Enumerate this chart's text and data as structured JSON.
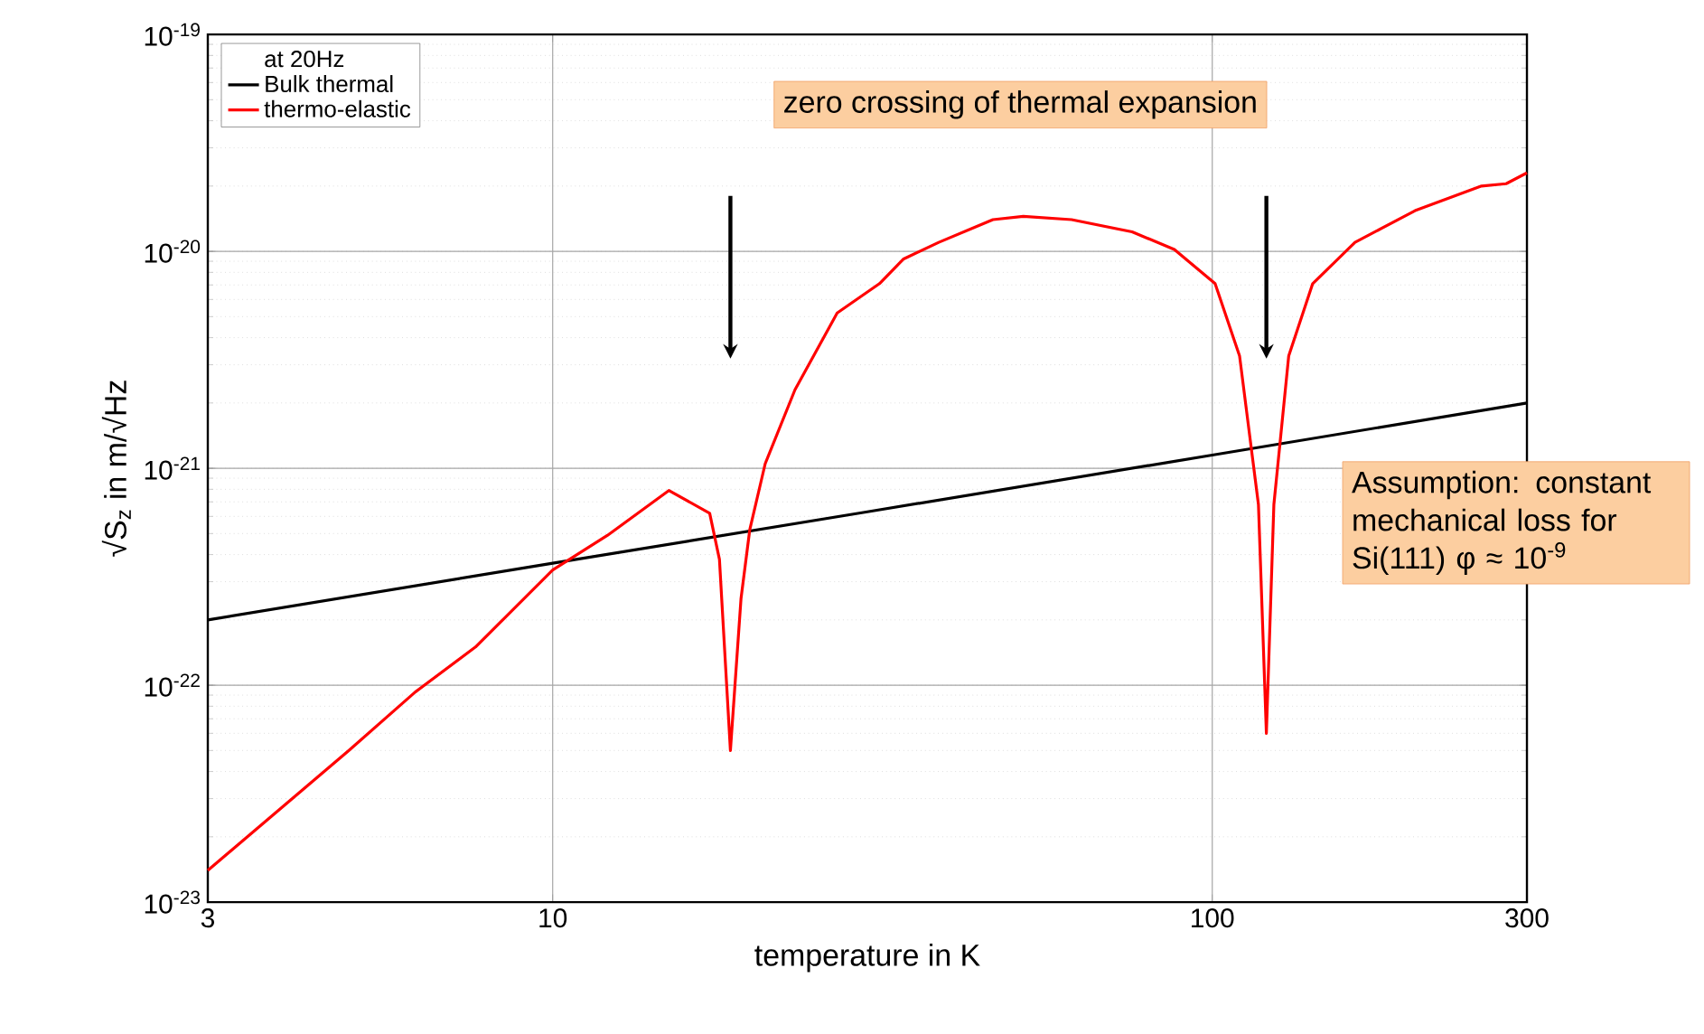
{
  "chart_data": {
    "type": "line",
    "xlabel": "temperature in K",
    "ylabel": "√S$_{z}$ in m/√Hz",
    "legend_title": "at 20Hz",
    "log": "xy",
    "grid": true,
    "legend": "top left",
    "marker": "none",
    "line_style": "solid",
    "xlim": [
      3,
      300
    ],
    "xticks": [
      3,
      10,
      100,
      300
    ],
    "ylim": [
      1e-23,
      1e-19
    ],
    "yticks": [
      {
        "value": 1e-23,
        "label": "10$^{-23}$"
      },
      {
        "value": 1e-22,
        "label": "10$^{-22}$"
      },
      {
        "value": 1e-21,
        "label": "10$^{-21}$"
      },
      {
        "value": 1e-20,
        "label": "10$^{-20}$"
      },
      {
        "value": 1e-19,
        "label": "10$^{-19}$"
      }
    ],
    "annotations": [
      "zero crossing of thermal expansion",
      "Assumption: constant mechanical loss for Si(111) φ ≈ 10$^{-9}$"
    ],
    "series": [
      {
        "name": "Bulk thermal",
        "color": "#000000",
        "x": [
          3,
          10,
          30,
          100,
          300
        ],
        "values": [
          2e-22,
          3.65e-22,
          6.3e-22,
          1.15e-21,
          2e-21
        ]
      },
      {
        "name": "thermo-elastic",
        "color": "#ff0000",
        "x": [
          3,
          4.91,
          6.19,
          7.64,
          10.0,
          12.1,
          15.0,
          17.3,
          17.9,
          18.6,
          19.3,
          19.9,
          21.0,
          23.3,
          27.0,
          31.3,
          34.0,
          38.5,
          46.5,
          51.7,
          61.2,
          75.6,
          87.6,
          101,
          110,
          117.5,
          120.8,
          124,
          130.6,
          142,
          164.6,
          203,
          256,
          279,
          300
        ],
        "values": [
          1.4e-23,
          5e-23,
          9.3e-23,
          1.5e-22,
          3.4e-22,
          4.9e-22,
          7.9e-22,
          6.2e-22,
          3.8e-22,
          5e-23,
          2.5e-22,
          5.2e-22,
          1.05e-21,
          2.3e-21,
          5.2e-21,
          7.1e-21,
          9.2e-21,
          1.1e-20,
          1.4e-20,
          1.45e-20,
          1.4e-20,
          1.23e-20,
          1.02e-20,
          7.1e-21,
          3.3e-21,
          6.8e-22,
          6e-23,
          6.8e-22,
          3.3e-21,
          7.1e-21,
          1.1e-20,
          1.54e-20,
          2e-20,
          2.05e-20,
          2.3e-20
        ]
      }
    ]
  }
}
